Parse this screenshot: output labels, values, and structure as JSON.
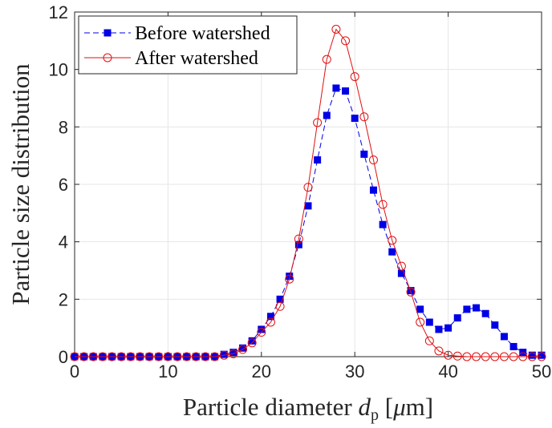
{
  "chart_data": {
    "type": "line",
    "x": [
      0,
      1,
      2,
      3,
      4,
      5,
      6,
      7,
      8,
      9,
      10,
      11,
      12,
      13,
      14,
      15,
      16,
      17,
      18,
      19,
      20,
      21,
      22,
      23,
      24,
      25,
      26,
      27,
      28,
      29,
      30,
      31,
      32,
      33,
      34,
      35,
      36,
      37,
      38,
      39,
      40,
      41,
      42,
      43,
      44,
      45,
      46,
      47,
      48,
      49,
      50
    ],
    "series": [
      {
        "name": "Before watershed",
        "color": "#0000e6",
        "line_style": "dashed",
        "marker": "filled-square",
        "values": [
          0,
          0,
          0,
          0,
          0,
          0,
          0,
          0,
          0,
          0,
          0,
          0,
          0,
          0,
          0,
          0,
          0.08,
          0.15,
          0.3,
          0.55,
          0.95,
          1.4,
          2.0,
          2.8,
          3.9,
          5.25,
          6.85,
          8.4,
          9.35,
          9.25,
          8.3,
          7.05,
          5.8,
          4.6,
          3.65,
          2.9,
          2.3,
          1.65,
          1.2,
          0.95,
          1.0,
          1.35,
          1.65,
          1.7,
          1.5,
          1.1,
          0.7,
          0.35,
          0.15,
          0.05,
          0.05
        ]
      },
      {
        "name": "After watershed",
        "color": "#e01010",
        "line_style": "solid",
        "marker": "open-circle",
        "values": [
          0,
          0,
          0,
          0,
          0,
          0,
          0,
          0,
          0,
          0,
          0,
          0,
          0,
          0,
          0,
          0,
          0.05,
          0.1,
          0.25,
          0.48,
          0.85,
          1.2,
          1.75,
          2.7,
          4.1,
          5.9,
          8.15,
          10.35,
          11.4,
          11.0,
          9.75,
          8.35,
          6.85,
          5.3,
          4.05,
          3.15,
          2.25,
          1.2,
          0.55,
          0.2,
          0.05,
          0.02,
          0,
          0,
          0,
          0,
          0,
          0,
          0,
          0,
          0
        ]
      }
    ],
    "x_ticks": [
      "0",
      "10",
      "20",
      "30",
      "40",
      "50"
    ],
    "y_ticks": [
      "0",
      "2",
      "4",
      "6",
      "8",
      "10",
      "12"
    ],
    "xlim": [
      0,
      50
    ],
    "ylim": [
      0,
      12
    ],
    "xlabel_text": "Particle diameter ",
    "xlabel_symbol": "d",
    "xlabel_subscript": "p",
    "xlabel_unit_open": " [",
    "xlabel_unit_symbol": "μ",
    "xlabel_unit_rest": "m]",
    "ylabel": "Particle size distribution",
    "grid": true,
    "legend_position": "top-left"
  }
}
